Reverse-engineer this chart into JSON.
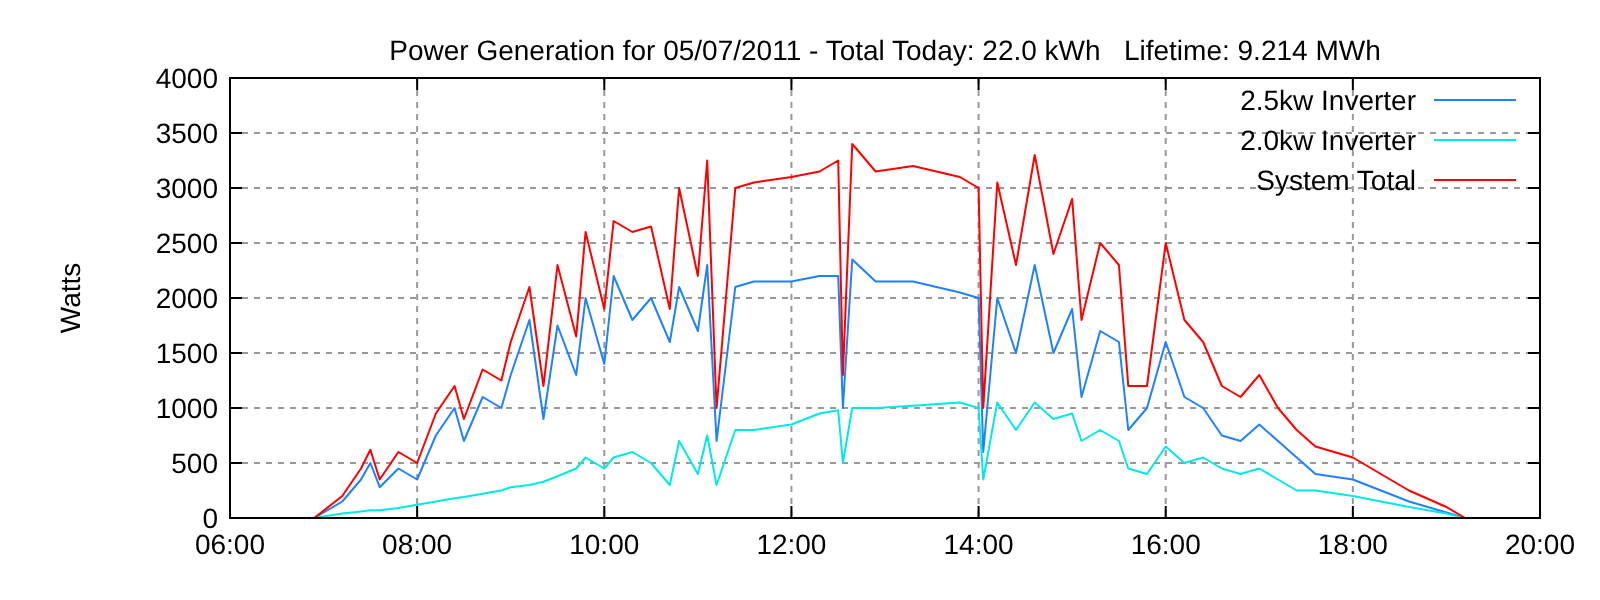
{
  "chart_data": {
    "type": "line",
    "title": "Power Generation for 05/07/2011 - Total Today: 22.0 kWh   Lifetime: 9.214 MWh",
    "ylabel": "Watts",
    "x": [
      6.9,
      7.2,
      7.4,
      7.5,
      7.6,
      7.8,
      8.0,
      8.2,
      8.4,
      8.5,
      8.7,
      8.9,
      9.0,
      9.2,
      9.35,
      9.5,
      9.7,
      9.8,
      10.0,
      10.1,
      10.3,
      10.5,
      10.7,
      10.8,
      11.0,
      11.1,
      11.2,
      11.4,
      11.6,
      12.0,
      12.3,
      12.5,
      12.55,
      12.65,
      12.9,
      13.3,
      13.8,
      14.0,
      14.05,
      14.2,
      14.4,
      14.6,
      14.8,
      15.0,
      15.1,
      15.3,
      15.5,
      15.6,
      15.8,
      16.0,
      16.2,
      16.4,
      16.6,
      16.8,
      17.0,
      17.2,
      17.4,
      17.6,
      18.0,
      18.3,
      18.6,
      19.0,
      19.2
    ],
    "series": [
      {
        "name": "2.5kw Inverter",
        "color": "#1e82ff",
        "values": [
          0,
          150,
          350,
          500,
          280,
          450,
          350,
          750,
          1000,
          700,
          1100,
          1000,
          1300,
          1800,
          900,
          1750,
          1300,
          2000,
          1400,
          2200,
          1800,
          2000,
          1600,
          2100,
          1700,
          2300,
          700,
          2100,
          2150,
          2150,
          2200,
          2200,
          1000,
          2350,
          2150,
          2150,
          2050,
          2000,
          600,
          2000,
          1500,
          2300,
          1500,
          1900,
          1100,
          1700,
          1600,
          800,
          1000,
          1600,
          1100,
          1000,
          750,
          700,
          850,
          700,
          550,
          400,
          350,
          250,
          150,
          50,
          0
        ]
      },
      {
        "name": "2.0kw Inverter",
        "color": "#00e8e8",
        "values": [
          0,
          40,
          60,
          70,
          70,
          90,
          120,
          150,
          180,
          190,
          220,
          250,
          280,
          300,
          330,
          380,
          450,
          550,
          450,
          550,
          600,
          500,
          300,
          700,
          400,
          750,
          300,
          800,
          800,
          850,
          950,
          980,
          500,
          1000,
          1000,
          1020,
          1050,
          1000,
          350,
          1050,
          800,
          1050,
          900,
          950,
          700,
          800,
          700,
          450,
          400,
          650,
          500,
          550,
          450,
          400,
          450,
          350,
          250,
          250,
          200,
          150,
          100,
          40,
          0
        ]
      },
      {
        "name": "System Total",
        "color": "#ff0000",
        "values": [
          0,
          200,
          450,
          620,
          350,
          600,
          500,
          950,
          1200,
          900,
          1350,
          1250,
          1600,
          2100,
          1200,
          2300,
          1650,
          2600,
          1900,
          2700,
          2600,
          2650,
          1900,
          3000,
          2200,
          3250,
          1000,
          3000,
          3050,
          3100,
          3150,
          3250,
          1300,
          3400,
          3150,
          3200,
          3100,
          3000,
          1000,
          3050,
          2300,
          3300,
          2400,
          2900,
          1800,
          2500,
          2300,
          1200,
          1200,
          2500,
          1800,
          1600,
          1200,
          1100,
          1300,
          1000,
          800,
          650,
          550,
          400,
          250,
          100,
          0
        ]
      }
    ],
    "xlim": [
      6,
      20
    ],
    "xticks": [
      {
        "value": 6,
        "label": "06:00"
      },
      {
        "value": 8,
        "label": "08:00"
      },
      {
        "value": 10,
        "label": "10:00"
      },
      {
        "value": 12,
        "label": "12:00"
      },
      {
        "value": 14,
        "label": "14:00"
      },
      {
        "value": 16,
        "label": "16:00"
      },
      {
        "value": 18,
        "label": "18:00"
      },
      {
        "value": 20,
        "label": "20:00"
      }
    ],
    "ylim": [
      0,
      4000
    ],
    "yticks": [
      0,
      500,
      1000,
      1500,
      2000,
      2500,
      3000,
      3500,
      4000
    ],
    "grid": true,
    "legend": "top right",
    "line_style": "solid",
    "marker": "none"
  }
}
